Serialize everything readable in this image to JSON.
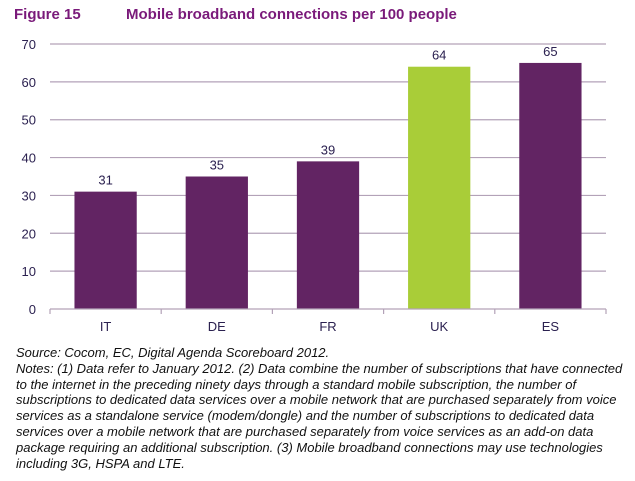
{
  "figure": {
    "label": "Figure 15",
    "title": "Mobile broadband connections per 100 people"
  },
  "colors": {
    "title": "#7a1a7a",
    "bar_default": "#622463",
    "bar_highlight": "#a9cd38",
    "grid": "#b3a2b8",
    "text": "#2b2150"
  },
  "chart_data": {
    "type": "bar",
    "title": "Mobile broadband connections per 100 people",
    "xlabel": "",
    "ylabel": "",
    "categories": [
      "IT",
      "DE",
      "FR",
      "UK",
      "ES"
    ],
    "values": [
      31,
      35,
      39,
      64,
      65
    ],
    "data_labels": [
      "31",
      "35",
      "39",
      "64",
      "65"
    ],
    "highlight": "UK",
    "ylim": [
      0,
      70
    ],
    "yticks": [
      0,
      10,
      20,
      30,
      40,
      50,
      60,
      70
    ],
    "grid": true,
    "legend": "none"
  },
  "notes": {
    "source": "Source: Cocom, EC, Digital Agenda Scoreboard 2012.",
    "text": "Notes: (1) Data refer to January 2012. (2) Data combine the number of subscriptions that have connected to the internet in the preceding ninety days through a standard mobile subscription, the number of subscriptions to dedicated data services over a mobile network that are purchased separately from voice services as a standalone service (modem/dongle) and the number of subscriptions to dedicated data services over a mobile network that are purchased separately from voice services as an add-on data package requiring an additional subscription. (3) Mobile broadband connections may use technologies including 3G, HSPA and LTE."
  }
}
